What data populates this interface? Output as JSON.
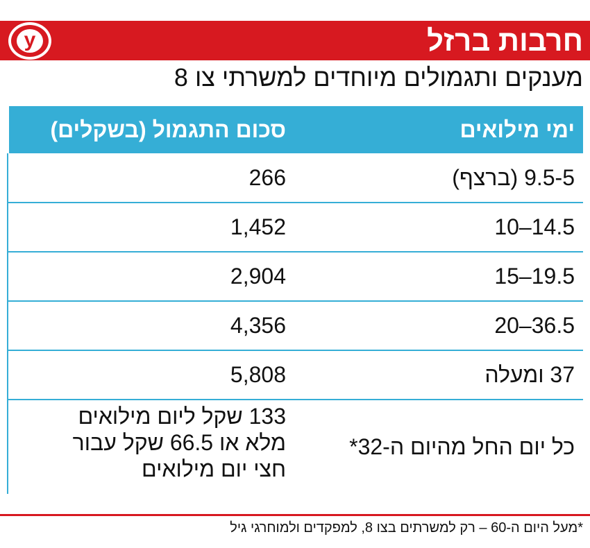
{
  "header": {
    "title": "חרבות ברזל",
    "logo_letter": "y",
    "subtitle": "מענקים ותגמולים מיוחדים למשרתי צו 8",
    "brand_color": "#d71920",
    "table_color": "#35aed6"
  },
  "table": {
    "columns": [
      "ימי מילואים",
      "סכום התגמול (בשקלים)"
    ],
    "rows": [
      {
        "days": "9.5-5 (ברצף)",
        "amount": "266"
      },
      {
        "days": "14.5–10",
        "amount": "1,452"
      },
      {
        "days": "19.5–15",
        "amount": "2,904"
      },
      {
        "days": "36.5–20",
        "amount": "4,356"
      },
      {
        "days": "37 ומעלה",
        "amount": "5,808"
      }
    ],
    "last_row": {
      "days": "כל יום החל מהיום ה-32*",
      "amount_lines": [
        "133 שקל ליום מילואים",
        "מלא או 66.5 שקל עבור",
        "חצי יום מילואים"
      ]
    }
  },
  "footnote": "*מעל היום ה-60 – רק למשרתים בצו 8, למפקדים ולמוחרגי גיל"
}
